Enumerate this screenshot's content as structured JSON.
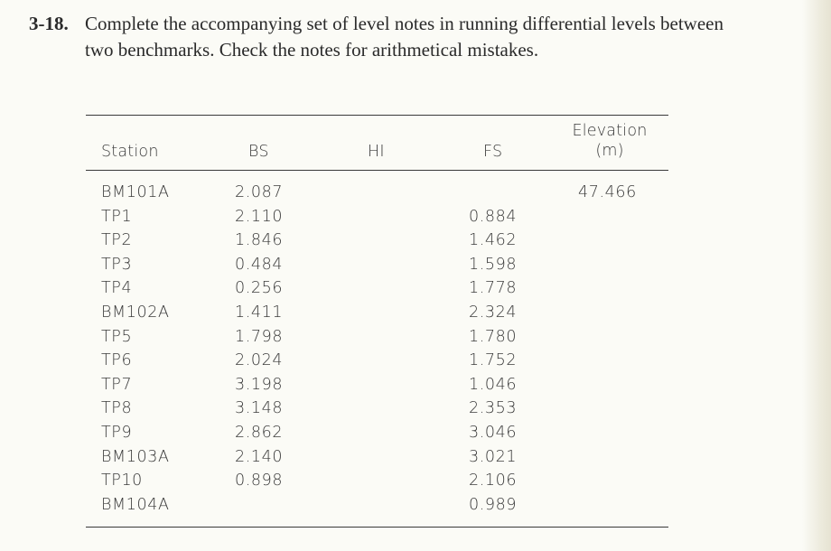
{
  "problem": {
    "number": "3-18.",
    "line1": "Complete the accompanying set of level notes in running differential levels between",
    "line2": "two benchmarks. Check the notes for arithmetical mistakes."
  },
  "table": {
    "headers": {
      "station": "Station",
      "bs": "BS",
      "hi": "HI",
      "fs": "FS",
      "elevation_line1": "Elevation",
      "elevation_line2": "(m)"
    },
    "rows": [
      {
        "station": "BM101A",
        "bs": "2.087",
        "hi": "",
        "fs": "",
        "elev": "47.466"
      },
      {
        "station": "TP1",
        "bs": "2.110",
        "hi": "",
        "fs": "0.884",
        "elev": ""
      },
      {
        "station": "TP2",
        "bs": "1.846",
        "hi": "",
        "fs": "1.462",
        "elev": ""
      },
      {
        "station": "TP3",
        "bs": "0.484",
        "hi": "",
        "fs": "1.598",
        "elev": ""
      },
      {
        "station": "TP4",
        "bs": "0.256",
        "hi": "",
        "fs": "1.778",
        "elev": ""
      },
      {
        "station": "BM102A",
        "bs": "1.411",
        "hi": "",
        "fs": "2.324",
        "elev": ""
      },
      {
        "station": "TP5",
        "bs": "1.798",
        "hi": "",
        "fs": "1.780",
        "elev": ""
      },
      {
        "station": "TP6",
        "bs": "2.024",
        "hi": "",
        "fs": "1.752",
        "elev": ""
      },
      {
        "station": "TP7",
        "bs": "3.198",
        "hi": "",
        "fs": "1.046",
        "elev": ""
      },
      {
        "station": "TP8",
        "bs": "3.148",
        "hi": "",
        "fs": "2.353",
        "elev": ""
      },
      {
        "station": "TP9",
        "bs": "2.862",
        "hi": "",
        "fs": "3.046",
        "elev": ""
      },
      {
        "station": "BM103A",
        "bs": "2.140",
        "hi": "",
        "fs": "3.021",
        "elev": ""
      },
      {
        "station": "TP10",
        "bs": "0.898",
        "hi": "",
        "fs": "2.106",
        "elev": ""
      },
      {
        "station": "BM104A",
        "bs": "",
        "hi": "",
        "fs": "0.989",
        "elev": ""
      }
    ]
  }
}
